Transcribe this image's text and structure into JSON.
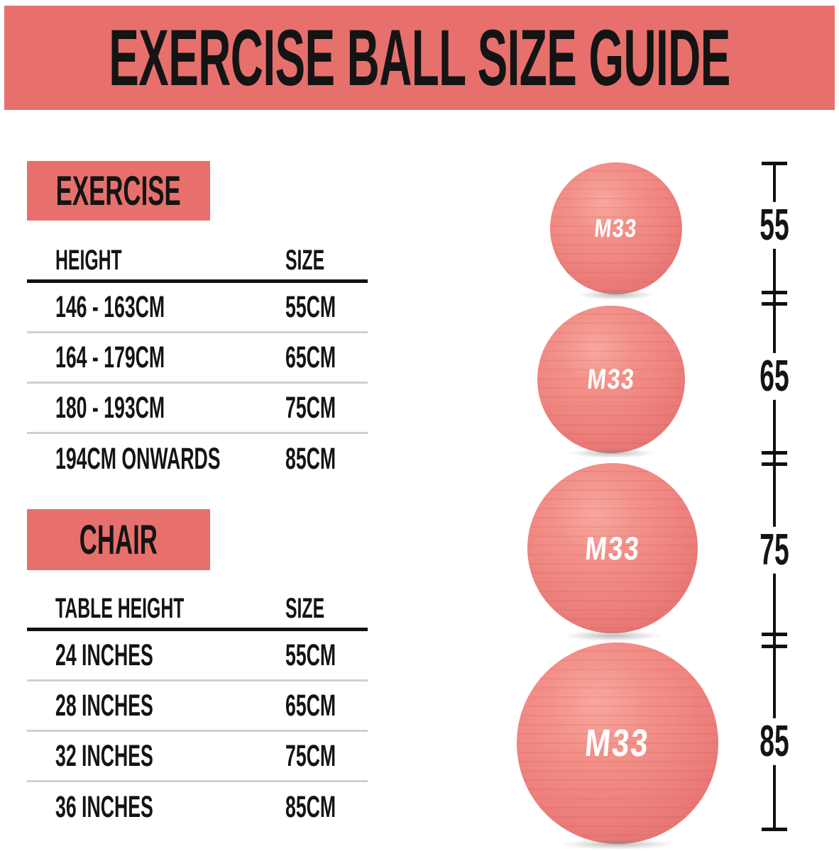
{
  "header": {
    "title": "EXERCISE BALL SIZE GUIDE"
  },
  "colors": {
    "coral": "#e7706c",
    "ball": "#ee837e",
    "text": "#141414",
    "separator": "#cfcfcf"
  },
  "exercise_section": {
    "label": "EXERCISE",
    "columns": {
      "col1": "HEIGHT",
      "col2": "SIZE"
    },
    "rows": [
      {
        "height": "146 - 163CM",
        "size": "55CM"
      },
      {
        "height": "164 - 179CM",
        "size": "65CM"
      },
      {
        "height": "180 - 193CM",
        "size": "75CM"
      },
      {
        "height": "194CM ONWARDS",
        "size": "85CM"
      }
    ]
  },
  "chair_section": {
    "label": "CHAIR",
    "columns": {
      "col1": "TABLE HEIGHT",
      "col2": "SIZE"
    },
    "rows": [
      {
        "height": "24 INCHES",
        "size": "55CM"
      },
      {
        "height": "28 INCHES",
        "size": "65CM"
      },
      {
        "height": "32 INCHES",
        "size": "75CM"
      },
      {
        "height": "36 INCHES",
        "size": "85CM"
      }
    ]
  },
  "balls": [
    {
      "logo": "M33",
      "size": "55"
    },
    {
      "logo": "M33",
      "size": "65"
    },
    {
      "logo": "M33",
      "size": "75"
    },
    {
      "logo": "M33",
      "size": "85"
    }
  ],
  "ruler": {
    "labels": [
      "55",
      "65",
      "75",
      "85"
    ]
  }
}
